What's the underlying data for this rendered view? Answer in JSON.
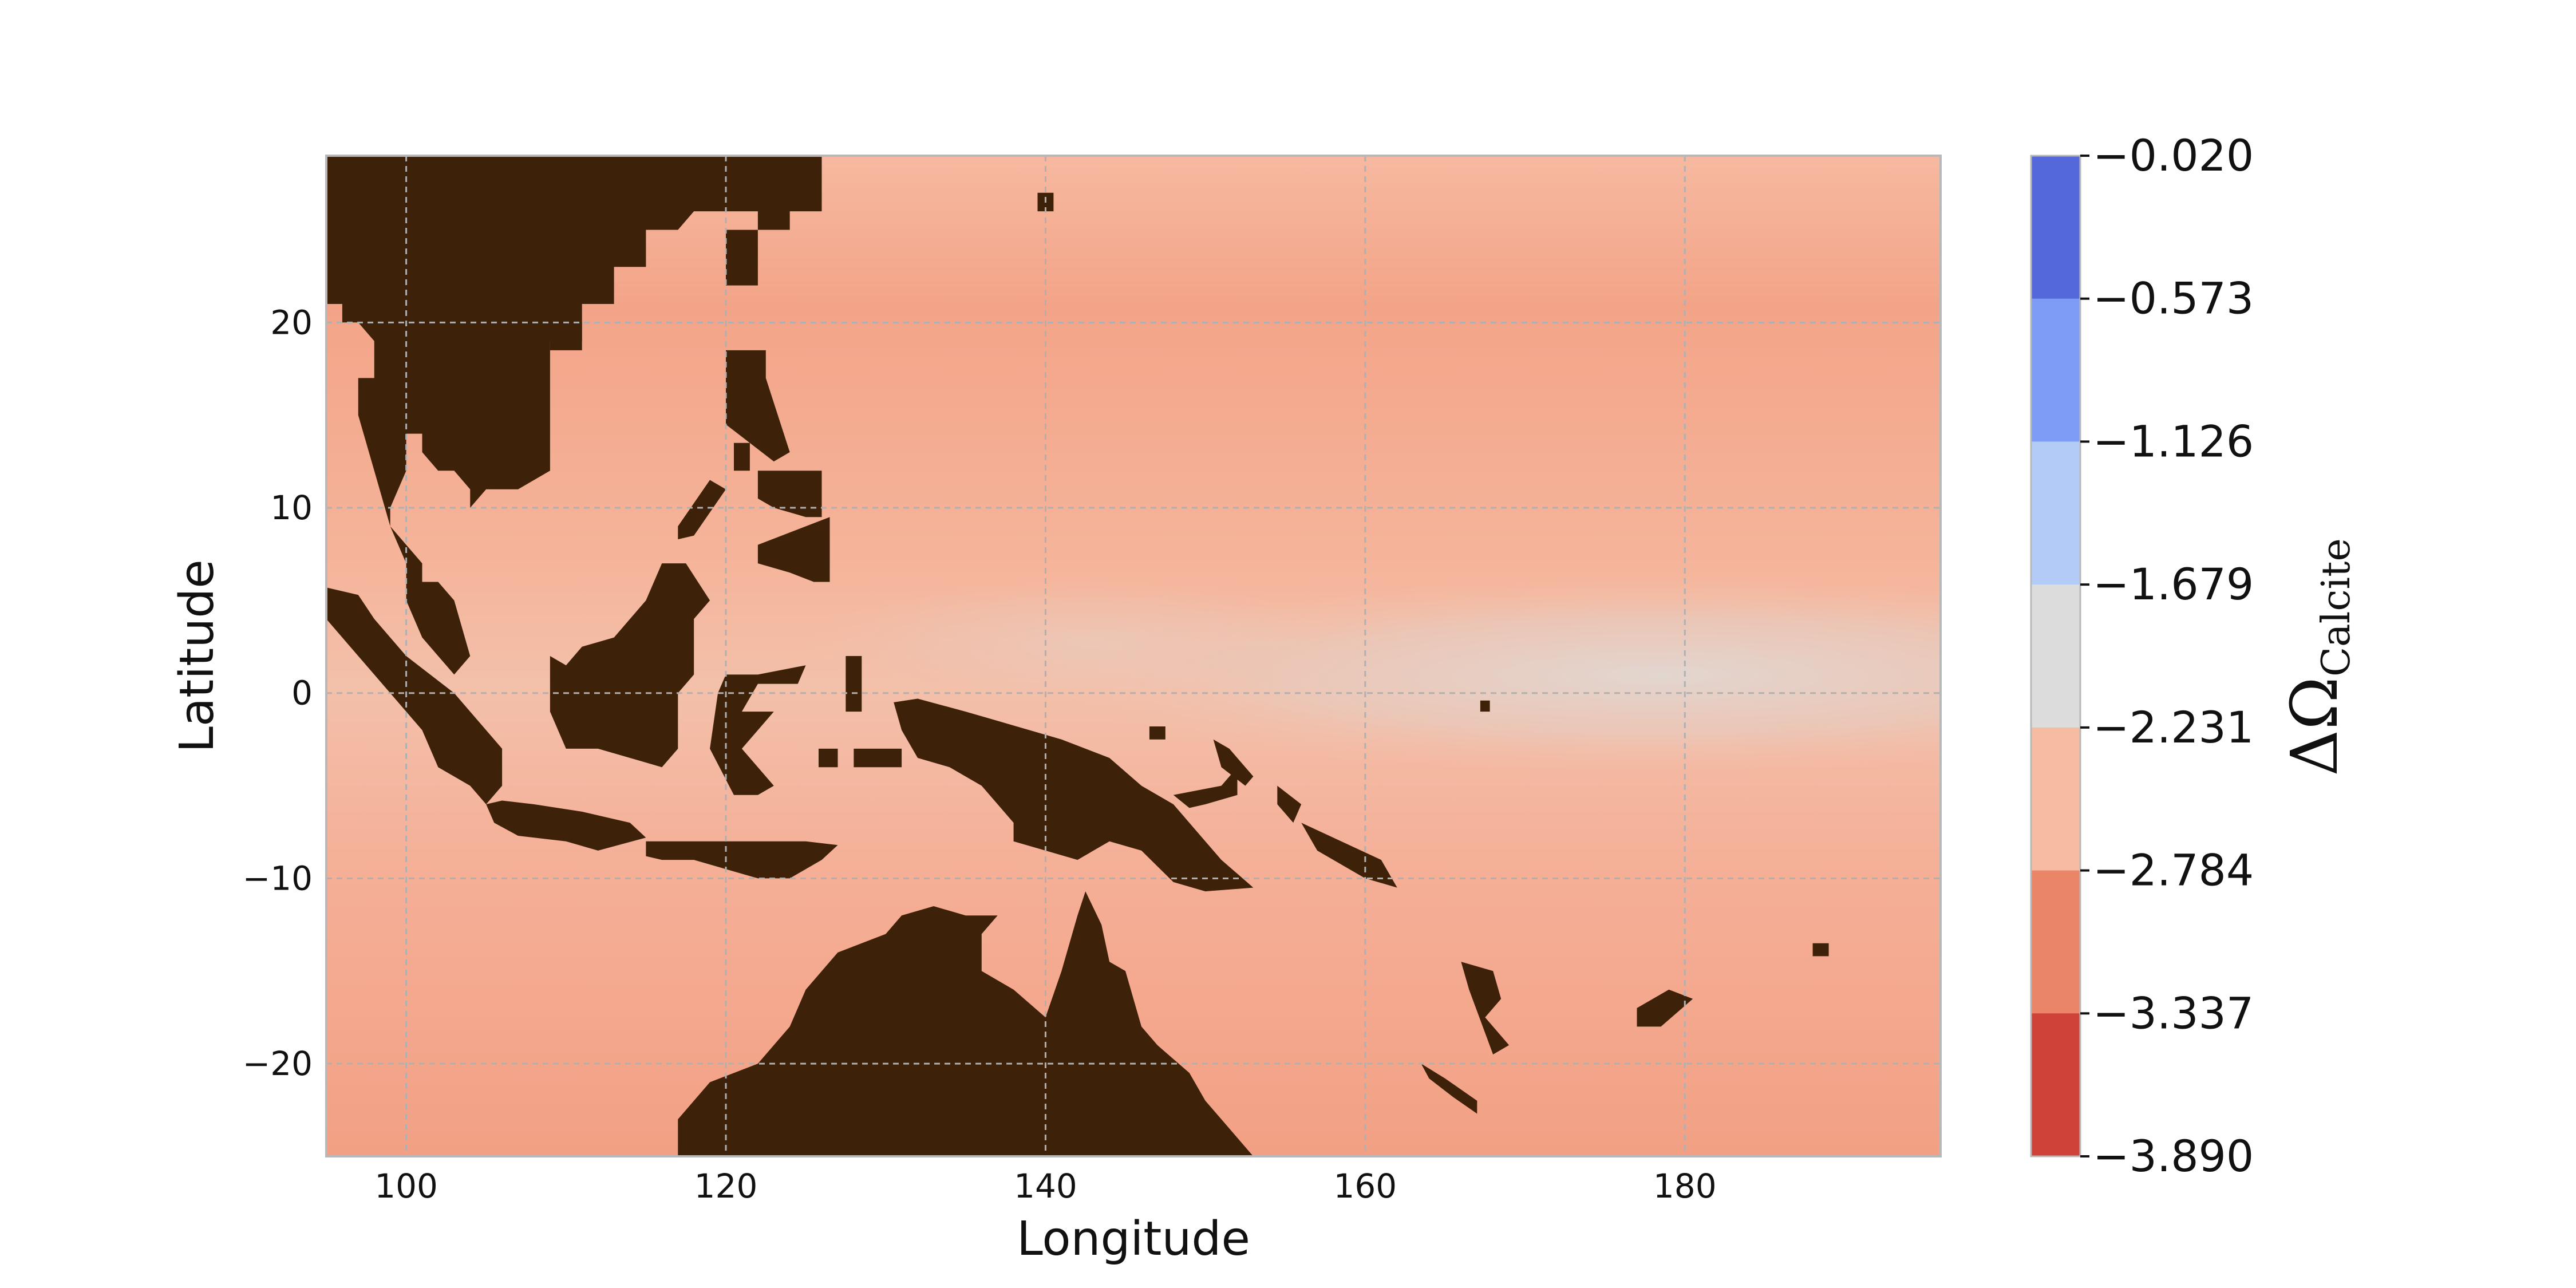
{
  "map": {
    "xlabel": "Longitude",
    "ylabel": "Latitude",
    "lon_range": [
      95,
      196
    ],
    "lat_range": [
      -25,
      29
    ],
    "lon_ticks": [
      100,
      120,
      140,
      160,
      180
    ],
    "lon_tick_labels": [
      "100",
      "120",
      "140",
      "160",
      "180"
    ],
    "lat_ticks": [
      20,
      10,
      0,
      -10,
      -20
    ],
    "lat_tick_labels": [
      "20",
      "10",
      "0",
      "−10",
      "−20"
    ],
    "grid": true,
    "land_color": "#3d2108",
    "ocean_colors": {
      "warm": "#f3a488",
      "pale": "#f6b9a0",
      "neutral": "#e2d6d0"
    }
  },
  "colorbar": {
    "title": "ΔΩ",
    "title_subscript": "Calcite",
    "tick_labels": [
      "−0.020",
      "−0.573",
      "−1.126",
      "−1.679",
      "−2.231",
      "−2.784",
      "−3.337",
      "−3.890"
    ],
    "bins": [
      {
        "from": -0.573,
        "to": -0.02,
        "color": "#5468db"
      },
      {
        "from": -1.126,
        "to": -0.573,
        "color": "#7d9df5"
      },
      {
        "from": -1.679,
        "to": -1.126,
        "color": "#b3cbf7"
      },
      {
        "from": -2.231,
        "to": -1.679,
        "color": "#dcdcdc"
      },
      {
        "from": -2.784,
        "to": -2.231,
        "color": "#f5bca2"
      },
      {
        "from": -3.337,
        "to": -2.784,
        "color": "#ea8568"
      },
      {
        "from": -3.89,
        "to": -3.337,
        "color": "#cf423a"
      }
    ]
  },
  "chart_data": {
    "type": "heatmap",
    "title": "",
    "xlabel": "Longitude",
    "ylabel": "Latitude",
    "xlim": [
      95,
      196
    ],
    "ylim": [
      -25,
      29
    ],
    "colorbar_label": "ΔΩ Calcite",
    "colorbar_ticks": [
      -0.02,
      -0.573,
      -1.126,
      -1.679,
      -2.231,
      -2.784,
      -3.337,
      -3.89
    ],
    "value_estimates": [
      {
        "region": "open ocean, most of domain",
        "value_range": [
          -2.9,
          -2.3
        ]
      },
      {
        "region": "equatorial band east of 160E",
        "value_range": [
          -2.2,
          -2.0
        ]
      }
    ]
  }
}
